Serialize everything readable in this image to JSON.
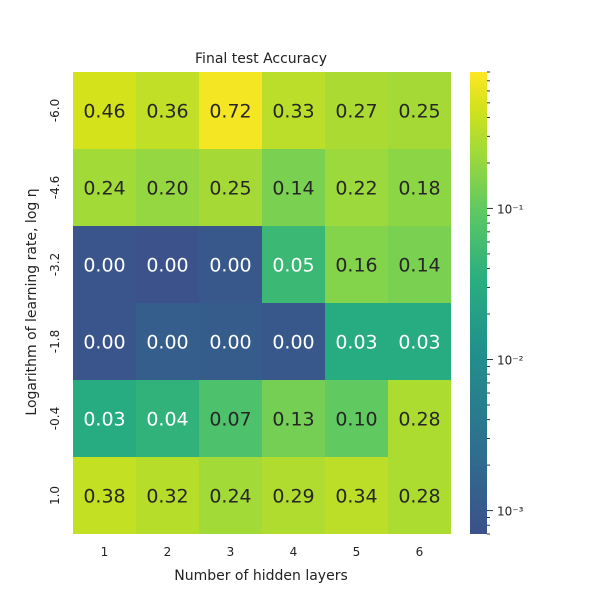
{
  "chart_data": {
    "type": "heatmap",
    "title": "Final test Accuracy",
    "xlabel": "Number of hidden layers",
    "ylabel": "Logarithm of learning rate, log η",
    "x_categories": [
      "1",
      "2",
      "3",
      "4",
      "5",
      "6"
    ],
    "y_categories": [
      "-6.0",
      "-4.6",
      "-3.2",
      "-1.8",
      "-0.4",
      "1.0"
    ],
    "values": [
      [
        0.46,
        0.36,
        0.72,
        0.33,
        0.27,
        0.25
      ],
      [
        0.24,
        0.2,
        0.25,
        0.14,
        0.22,
        0.18
      ],
      [
        0.0008,
        0.0007,
        0.0009,
        0.05,
        0.16,
        0.14
      ],
      [
        0.0008,
        0.0012,
        0.0011,
        0.0009,
        0.03,
        0.03
      ],
      [
        0.03,
        0.04,
        0.07,
        0.13,
        0.1,
        0.28
      ],
      [
        0.38,
        0.32,
        0.24,
        0.29,
        0.34,
        0.28
      ]
    ],
    "cell_labels": [
      [
        "0.46",
        "0.36",
        "0.72",
        "0.33",
        "0.27",
        "0.25"
      ],
      [
        "0.24",
        "0.20",
        "0.25",
        "0.14",
        "0.22",
        "0.18"
      ],
      [
        "0.00",
        "0.00",
        "0.00",
        "0.05",
        "0.16",
        "0.14"
      ],
      [
        "0.00",
        "0.00",
        "0.00",
        "0.00",
        "0.03",
        "0.03"
      ],
      [
        "0.03",
        "0.04",
        "0.07",
        "0.13",
        "0.10",
        "0.28"
      ],
      [
        "0.38",
        "0.32",
        "0.24",
        "0.29",
        "0.34",
        "0.28"
      ]
    ],
    "colorbar": {
      "scale": "log",
      "range": [
        0.0007,
        0.8
      ],
      "ticks": [
        0.001,
        0.01,
        0.1
      ],
      "tick_labels": [
        "10⁻³",
        "10⁻²",
        "10⁻¹"
      ],
      "colormap": "viridis"
    },
    "grid": false
  }
}
